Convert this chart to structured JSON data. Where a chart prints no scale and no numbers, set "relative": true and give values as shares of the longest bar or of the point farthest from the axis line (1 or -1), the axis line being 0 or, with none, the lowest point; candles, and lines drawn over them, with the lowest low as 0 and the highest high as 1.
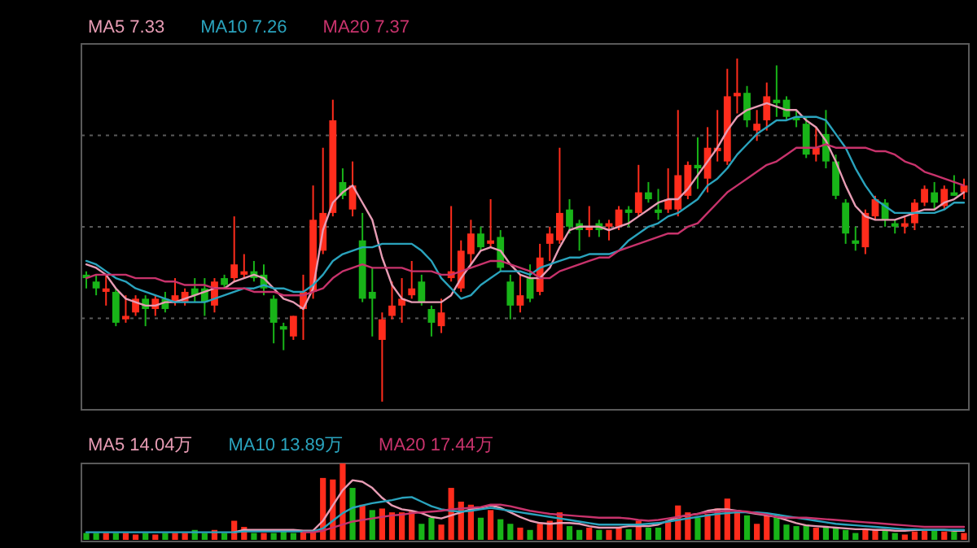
{
  "chart_data": [
    {
      "type": "candlestick",
      "relative": true,
      "grid": "y",
      "legend": "top left",
      "categories": [
        null,
        null,
        null,
        null,
        null,
        null,
        null,
        null,
        null,
        null,
        null,
        null,
        null,
        null,
        null,
        null,
        null,
        null,
        null,
        null,
        null,
        null,
        null,
        null,
        null,
        null,
        null,
        null,
        null,
        null,
        null,
        null,
        null,
        null,
        null,
        null,
        null,
        null,
        null,
        null,
        null,
        null,
        null,
        null,
        null,
        null,
        null,
        null,
        null,
        null,
        null,
        null,
        null,
        null,
        null,
        null,
        null,
        null,
        null,
        null,
        null,
        null,
        null,
        null,
        null,
        null,
        null,
        null,
        null,
        null,
        null,
        null,
        null,
        null,
        null,
        null,
        null,
        null,
        null,
        null,
        null,
        null,
        null,
        null,
        null,
        null,
        null,
        null,
        null,
        null
      ],
      "ohlc": [
        [
          0.37,
          0.38,
          0.33,
          0.36
        ],
        [
          0.35,
          0.37,
          0.31,
          0.33
        ],
        [
          0.32,
          0.37,
          0.28,
          0.33
        ],
        [
          0.32,
          0.33,
          0.22,
          0.23
        ],
        [
          0.24,
          0.31,
          0.23,
          0.25
        ],
        [
          0.26,
          0.31,
          0.25,
          0.3
        ],
        [
          0.3,
          0.31,
          0.22,
          0.27
        ],
        [
          0.27,
          0.31,
          0.25,
          0.3
        ],
        [
          0.3,
          0.32,
          0.26,
          0.27
        ],
        [
          0.29,
          0.36,
          0.28,
          0.31
        ],
        [
          0.29,
          0.33,
          0.28,
          0.32
        ],
        [
          0.33,
          0.36,
          0.29,
          0.31
        ],
        [
          0.33,
          0.36,
          0.25,
          0.29
        ],
        [
          0.28,
          0.36,
          0.26,
          0.35
        ],
        [
          0.36,
          0.37,
          0.33,
          0.34
        ],
        [
          0.36,
          0.54,
          0.35,
          0.4
        ],
        [
          0.37,
          0.43,
          0.36,
          0.38
        ],
        [
          0.38,
          0.41,
          0.35,
          0.36
        ],
        [
          0.37,
          0.4,
          0.31,
          0.33
        ],
        [
          0.3,
          0.31,
          0.17,
          0.23
        ],
        [
          0.22,
          0.23,
          0.15,
          0.21
        ],
        [
          0.19,
          0.25,
          0.18,
          0.25
        ],
        [
          0.27,
          0.37,
          0.18,
          0.32
        ],
        [
          0.32,
          0.63,
          0.3,
          0.53
        ],
        [
          0.44,
          0.74,
          0.43,
          0.55
        ],
        [
          0.55,
          0.88,
          0.54,
          0.82
        ],
        [
          0.64,
          0.68,
          0.59,
          0.6
        ],
        [
          0.56,
          0.7,
          0.54,
          0.63
        ],
        [
          0.47,
          0.55,
          0.29,
          0.3
        ],
        [
          0.32,
          0.39,
          0.19,
          0.3
        ],
        [
          0.18,
          0.26,
          0,
          0.24
        ],
        [
          0.25,
          0.35,
          0.24,
          0.28
        ],
        [
          0.28,
          0.36,
          0.23,
          0.3
        ],
        [
          0.31,
          0.41,
          0.3,
          0.33
        ],
        [
          0.35,
          0.37,
          0.28,
          0.29
        ],
        [
          0.27,
          0.28,
          0.19,
          0.23
        ],
        [
          0.22,
          0.3,
          0.2,
          0.26
        ],
        [
          0.36,
          0.57,
          0.35,
          0.38
        ],
        [
          0.33,
          0.47,
          0.32,
          0.44
        ],
        [
          0.43,
          0.53,
          0.4,
          0.49
        ],
        [
          0.49,
          0.51,
          0.44,
          0.45
        ],
        [
          0.46,
          0.59,
          0.45,
          0.47
        ],
        [
          0.48,
          0.5,
          0.38,
          0.39
        ],
        [
          0.35,
          0.37,
          0.24,
          0.28
        ],
        [
          0.28,
          0.37,
          0.26,
          0.31
        ],
        [
          0.36,
          0.4,
          0.29,
          0.3
        ],
        [
          0.32,
          0.46,
          0.31,
          0.42
        ],
        [
          0.46,
          0.51,
          0.41,
          0.49
        ],
        [
          0.47,
          0.74,
          0.46,
          0.55
        ],
        [
          0.56,
          0.59,
          0.49,
          0.51
        ],
        [
          0.52,
          0.53,
          0.44,
          0.5
        ],
        [
          0.5,
          0.57,
          0.48,
          0.51
        ],
        [
          0.52,
          0.53,
          0.48,
          0.5
        ],
        [
          0.51,
          0.53,
          0.47,
          0.52
        ],
        [
          0.51,
          0.57,
          0.5,
          0.56
        ],
        [
          0.56,
          0.57,
          0.51,
          0.55
        ],
        [
          0.55,
          0.69,
          0.54,
          0.61
        ],
        [
          0.61,
          0.64,
          0.58,
          0.59
        ],
        [
          0.56,
          0.62,
          0.53,
          0.55
        ],
        [
          0.56,
          0.68,
          0.55,
          0.59
        ],
        [
          0.56,
          0.85,
          0.54,
          0.66
        ],
        [
          0.6,
          0.7,
          0.59,
          0.69
        ],
        [
          0.69,
          0.77,
          0.62,
          0.68
        ],
        [
          0.65,
          0.8,
          0.61,
          0.74
        ],
        [
          0.73,
          0.85,
          0.7,
          0.74
        ],
        [
          0.7,
          0.97,
          0.69,
          0.89
        ],
        [
          0.89,
          1,
          0.84,
          0.9
        ],
        [
          0.9,
          0.92,
          0.8,
          0.82
        ],
        [
          0.79,
          0.85,
          0.76,
          0.81
        ],
        [
          0.82,
          0.93,
          0.79,
          0.89
        ],
        [
          0.88,
          0.98,
          0.83,
          0.87
        ],
        [
          0.88,
          0.89,
          0.82,
          0.83
        ],
        [
          0.83,
          0.85,
          0.8,
          0.82
        ],
        [
          0.81,
          0.83,
          0.71,
          0.72
        ],
        [
          0.72,
          0.8,
          0.7,
          0.74
        ],
        [
          0.78,
          0.85,
          0.68,
          0.7
        ],
        [
          0.7,
          0.72,
          0.59,
          0.6
        ],
        [
          0.58,
          0.59,
          0.46,
          0.49
        ],
        [
          0.47,
          0.51,
          0.44,
          0.46
        ],
        [
          0.45,
          0.56,
          0.43,
          0.55
        ],
        [
          0.54,
          0.6,
          0.53,
          0.59
        ],
        [
          0.58,
          0.59,
          0.51,
          0.53
        ],
        [
          0.52,
          0.53,
          0.49,
          0.51
        ],
        [
          0.51,
          0.54,
          0.49,
          0.52
        ],
        [
          0.52,
          0.59,
          0.5,
          0.58
        ],
        [
          0.58,
          0.63,
          0.57,
          0.62
        ],
        [
          0.61,
          0.64,
          0.56,
          0.58
        ],
        [
          0.57,
          0.63,
          0.56,
          0.62
        ],
        [
          0.61,
          0.66,
          0.6,
          0.6
        ],
        [
          0.61,
          0.65,
          0.59,
          0.63
        ]
      ],
      "colors": [
        "#18b418",
        "#18b418",
        "#ff2c1c",
        "#18b418",
        "#ff2c1c",
        "#ff2c1c",
        "#18b418",
        "#ff2c1c",
        "#18b418",
        "#ff2c1c",
        "#ff2c1c",
        "#18b418",
        "#18b418",
        "#ff2c1c",
        "#18b418",
        "#ff2c1c",
        "#ff2c1c",
        "#18b418",
        "#18b418",
        "#18b418",
        "#18b418",
        "#ff2c1c",
        "#ff2c1c",
        "#ff2c1c",
        "#ff2c1c",
        "#ff2c1c",
        "#18b418",
        "#ff2c1c",
        "#18b418",
        "#18b418",
        "#ff2c1c",
        "#ff2c1c",
        "#ff2c1c",
        "#ff2c1c",
        "#18b418",
        "#18b418",
        "#ff2c1c",
        "#ff2c1c",
        "#ff2c1c",
        "#ff2c1c",
        "#18b418",
        "#ff2c1c",
        "#18b418",
        "#18b418",
        "#ff2c1c",
        "#18b418",
        "#ff2c1c",
        "#ff2c1c",
        "#ff2c1c",
        "#18b418",
        "#18b418",
        "#ff2c1c",
        "#18b418",
        "#ff2c1c",
        "#ff2c1c",
        "#18b418",
        "#ff2c1c",
        "#18b418",
        "#18b418",
        "#ff2c1c",
        "#ff2c1c",
        "#ff2c1c",
        "#18b418",
        "#ff2c1c",
        "#ff2c1c",
        "#ff2c1c",
        "#ff2c1c",
        "#18b418",
        "#ff2c1c",
        "#ff2c1c",
        "#18b418",
        "#18b418",
        "#18b418",
        "#18b418",
        "#ff2c1c",
        "#18b418",
        "#18b418",
        "#18b418",
        "#18b418",
        "#ff2c1c",
        "#ff2c1c",
        "#18b418",
        "#18b418",
        "#ff2c1c",
        "#ff2c1c",
        "#ff2c1c",
        "#18b418",
        "#ff2c1c",
        "#18b418",
        "#ff2c1c"
      ],
      "series": [
        {
          "name": "MA5 7.33",
          "type": "line",
          "color": "#e79cb4",
          "values": [
            0.4,
            0.39,
            0.37,
            0.33,
            0.3,
            0.29,
            0.28,
            0.28,
            0.29,
            0.29,
            0.3,
            0.31,
            0.32,
            0.33,
            0.33,
            0.35,
            0.36,
            0.37,
            0.36,
            0.33,
            0.3,
            0.29,
            0.27,
            0.33,
            0.5,
            0.58,
            0.61,
            0.63,
            0.58,
            0.53,
            0.42,
            0.34,
            0.3,
            0.29,
            0.29,
            0.29,
            0.29,
            0.31,
            0.36,
            0.4,
            0.44,
            0.45,
            0.44,
            0.4,
            0.37,
            0.36,
            0.36,
            0.39,
            0.45,
            0.5,
            0.51,
            0.51,
            0.51,
            0.5,
            0.51,
            0.52,
            0.54,
            0.56,
            0.58,
            0.59,
            0.59,
            0.62,
            0.66,
            0.7,
            0.74,
            0.79,
            0.83,
            0.85,
            0.86,
            0.87,
            0.86,
            0.85,
            0.85,
            0.82,
            0.8,
            0.76,
            0.7,
            0.63,
            0.57,
            0.54,
            0.53,
            0.53,
            0.53,
            0.54,
            0.55,
            0.56,
            0.56,
            0.58,
            0.59,
            0.61
          ]
        },
        {
          "name": "MA10 7.26",
          "type": "line",
          "color": "#2aa3bd",
          "values": [
            0.41,
            0.4,
            0.38,
            0.36,
            0.35,
            0.33,
            0.32,
            0.31,
            0.3,
            0.29,
            0.29,
            0.29,
            0.29,
            0.3,
            0.31,
            0.32,
            0.33,
            0.33,
            0.34,
            0.33,
            0.33,
            0.32,
            0.32,
            0.34,
            0.37,
            0.41,
            0.43,
            0.44,
            0.45,
            0.45,
            0.46,
            0.46,
            0.46,
            0.46,
            0.44,
            0.41,
            0.36,
            0.33,
            0.3,
            0.31,
            0.34,
            0.36,
            0.38,
            0.38,
            0.38,
            0.37,
            0.39,
            0.4,
            0.41,
            0.42,
            0.42,
            0.43,
            0.43,
            0.43,
            0.44,
            0.47,
            0.49,
            0.51,
            0.52,
            0.54,
            0.55,
            0.57,
            0.59,
            0.63,
            0.65,
            0.68,
            0.72,
            0.75,
            0.78,
            0.8,
            0.82,
            0.82,
            0.83,
            0.83,
            0.83,
            0.82,
            0.78,
            0.74,
            0.68,
            0.63,
            0.59,
            0.57,
            0.55,
            0.55,
            0.55,
            0.55,
            0.55,
            0.56,
            0.58,
            0.58
          ]
        },
        {
          "name": "MA20 7.37",
          "type": "line",
          "color": "#c8336c",
          "values": [
            0.36,
            0.37,
            0.37,
            0.37,
            0.37,
            0.36,
            0.36,
            0.36,
            0.35,
            0.35,
            0.34,
            0.34,
            0.34,
            0.33,
            0.33,
            0.33,
            0.33,
            0.32,
            0.32,
            0.32,
            0.31,
            0.31,
            0.31,
            0.32,
            0.33,
            0.36,
            0.38,
            0.39,
            0.4,
            0.39,
            0.39,
            0.39,
            0.39,
            0.38,
            0.38,
            0.38,
            0.37,
            0.37,
            0.38,
            0.39,
            0.4,
            0.41,
            0.41,
            0.4,
            0.39,
            0.38,
            0.36,
            0.36,
            0.38,
            0.39,
            0.4,
            0.41,
            0.42,
            0.42,
            0.44,
            0.45,
            0.46,
            0.47,
            0.48,
            0.49,
            0.49,
            0.51,
            0.52,
            0.55,
            0.58,
            0.61,
            0.63,
            0.65,
            0.67,
            0.69,
            0.7,
            0.72,
            0.74,
            0.74,
            0.74,
            0.75,
            0.74,
            0.74,
            0.74,
            0.74,
            0.73,
            0.73,
            0.72,
            0.7,
            0.69,
            0.67,
            0.66,
            0.65,
            0.64,
            0.63
          ]
        }
      ]
    },
    {
      "type": "bar",
      "relative": true,
      "legend": "top left",
      "categories": [
        null,
        null,
        null,
        null,
        null,
        null,
        null,
        null,
        null,
        null,
        null,
        null,
        null,
        null,
        null,
        null,
        null,
        null,
        null,
        null,
        null,
        null,
        null,
        null,
        null,
        null,
        null,
        null,
        null,
        null,
        null,
        null,
        null,
        null,
        null,
        null,
        null,
        null,
        null,
        null,
        null,
        null,
        null,
        null,
        null,
        null,
        null,
        null,
        null,
        null,
        null,
        null,
        null,
        null,
        null,
        null,
        null,
        null,
        null,
        null,
        null,
        null,
        null,
        null,
        null,
        null,
        null,
        null,
        null,
        null,
        null,
        null,
        null,
        null,
        null,
        null,
        null,
        null,
        null,
        null,
        null,
        null,
        null,
        null,
        null,
        null,
        null,
        null,
        null,
        null
      ],
      "series": [
        {
          "type": "bar",
          "values": [
            0.09,
            0.09,
            0.09,
            0.09,
            0.09,
            0.07,
            0.09,
            0.07,
            0.09,
            0.09,
            0.09,
            0.13,
            0.09,
            0.13,
            0.09,
            0.25,
            0.17,
            0.09,
            0.09,
            0.09,
            0.11,
            0.09,
            0.11,
            0.11,
            0.81,
            0.79,
            1,
            0.68,
            0.46,
            0.39,
            0.41,
            0.36,
            0.36,
            0.37,
            0.21,
            0.29,
            0.2,
            0.68,
            0.5,
            0.46,
            0.29,
            0.39,
            0.27,
            0.21,
            0.16,
            0.13,
            0.21,
            0.25,
            0.36,
            0.18,
            0.13,
            0.16,
            0.13,
            0.13,
            0.16,
            0.14,
            0.25,
            0.16,
            0.16,
            0.25,
            0.45,
            0.36,
            0.29,
            0.34,
            0.41,
            0.54,
            0.39,
            0.32,
            0.21,
            0.34,
            0.34,
            0.2,
            0.18,
            0.2,
            0.16,
            0.18,
            0.16,
            0.13,
            0.09,
            0.14,
            0.14,
            0.13,
            0.09,
            0.07,
            0.11,
            0.13,
            0.13,
            0.11,
            0.11,
            0.09
          ],
          "colors": [
            "#18b418",
            "#18b418",
            "#ff2c1c",
            "#18b418",
            "#ff2c1c",
            "#ff2c1c",
            "#18b418",
            "#ff2c1c",
            "#18b418",
            "#ff2c1c",
            "#ff2c1c",
            "#18b418",
            "#18b418",
            "#ff2c1c",
            "#18b418",
            "#ff2c1c",
            "#ff2c1c",
            "#18b418",
            "#ff2c1c",
            "#18b418",
            "#18b418",
            "#18b418",
            "#ff2c1c",
            "#ff2c1c",
            "#ff2c1c",
            "#ff2c1c",
            "#ff2c1c",
            "#18b418",
            "#ff2c1c",
            "#18b418",
            "#ff2c1c",
            "#ff2c1c",
            "#ff2c1c",
            "#ff2c1c",
            "#18b418",
            "#18b418",
            "#ff2c1c",
            "#ff2c1c",
            "#ff2c1c",
            "#ff2c1c",
            "#18b418",
            "#ff2c1c",
            "#18b418",
            "#18b418",
            "#ff2c1c",
            "#18b418",
            "#ff2c1c",
            "#ff2c1c",
            "#ff2c1c",
            "#18b418",
            "#18b418",
            "#ff2c1c",
            "#18b418",
            "#ff2c1c",
            "#ff2c1c",
            "#18b418",
            "#ff2c1c",
            "#18b418",
            "#18b418",
            "#ff2c1c",
            "#ff2c1c",
            "#ff2c1c",
            "#18b418",
            "#ff2c1c",
            "#ff2c1c",
            "#ff2c1c",
            "#ff2c1c",
            "#18b418",
            "#ff2c1c",
            "#ff2c1c",
            "#18b418",
            "#18b418",
            "#18b418",
            "#18b418",
            "#ff2c1c",
            "#18b418",
            "#18b418",
            "#18b418",
            "#18b418",
            "#ff2c1c",
            "#ff2c1c",
            "#18b418",
            "#18b418",
            "#ff2c1c",
            "#ff2c1c",
            "#ff2c1c",
            "#18b418",
            "#ff2c1c",
            "#18b418",
            "#ff2c1c"
          ]
        },
        {
          "name": "MA5 14.04万",
          "type": "line",
          "color": "#e79cb4",
          "values": [
            null,
            null,
            null,
            null,
            null,
            null,
            null,
            null,
            null,
            null,
            null,
            null,
            null,
            null,
            null,
            0.1,
            0.13,
            0.13,
            0.13,
            0.13,
            0.13,
            0.13,
            0.12,
            0.12,
            0.25,
            0.45,
            0.65,
            0.78,
            0.76,
            0.68,
            0.55,
            0.45,
            0.4,
            0.38,
            0.35,
            0.3,
            0.28,
            0.32,
            0.36,
            0.4,
            0.42,
            0.45,
            0.42,
            0.36,
            0.3,
            0.25,
            0.22,
            0.21,
            0.22,
            0.22,
            0.21,
            0.18,
            0.16,
            0.16,
            0.16,
            0.18,
            0.18,
            0.18,
            0.2,
            0.25,
            0.3,
            0.32,
            0.34,
            0.38,
            0.4,
            0.4,
            0.38,
            0.36,
            0.34,
            0.32,
            0.3,
            0.26,
            0.22,
            0.19,
            0.18,
            0.17,
            0.16,
            0.15,
            0.14,
            0.14,
            0.13,
            0.13,
            0.12,
            0.12,
            0.13,
            0.13,
            0.13,
            0.13,
            0.12,
            0.12
          ]
        },
        {
          "name": "MA10 13.89万",
          "type": "line",
          "color": "#2aa3bd",
          "values": [
            0.1,
            0.1,
            0.1,
            0.1,
            0.1,
            0.1,
            0.1,
            0.1,
            0.1,
            0.1,
            0.1,
            0.1,
            0.1,
            0.1,
            0.1,
            0.1,
            0.11,
            0.11,
            0.11,
            0.11,
            0.11,
            0.11,
            0.11,
            0.11,
            0.15,
            0.25,
            0.35,
            0.42,
            0.45,
            0.48,
            0.5,
            0.52,
            0.55,
            0.56,
            0.5,
            0.44,
            0.4,
            0.38,
            0.37,
            0.38,
            0.4,
            0.42,
            0.4,
            0.38,
            0.36,
            0.34,
            0.32,
            0.3,
            0.28,
            0.26,
            0.24,
            0.22,
            0.2,
            0.2,
            0.2,
            0.2,
            0.2,
            0.21,
            0.22,
            0.24,
            0.26,
            0.28,
            0.3,
            0.32,
            0.34,
            0.35,
            0.36,
            0.36,
            0.36,
            0.35,
            0.33,
            0.31,
            0.29,
            0.27,
            0.25,
            0.23,
            0.21,
            0.2,
            0.19,
            0.18,
            0.17,
            0.16,
            0.15,
            0.14,
            0.14,
            0.13,
            0.13,
            0.13,
            0.13,
            0.13
          ]
        },
        {
          "name": "MA20 17.44万",
          "type": "line",
          "color": "#c8336c",
          "values": [
            null,
            null,
            null,
            null,
            null,
            null,
            null,
            null,
            null,
            null,
            null,
            null,
            null,
            null,
            null,
            null,
            null,
            null,
            null,
            null,
            null,
            null,
            0.1,
            0.1,
            0.12,
            0.16,
            0.2,
            0.24,
            0.26,
            0.28,
            0.3,
            0.32,
            0.33,
            0.35,
            0.36,
            0.37,
            0.38,
            0.4,
            0.41,
            0.42,
            0.43,
            0.46,
            0.46,
            0.44,
            0.41,
            0.38,
            0.36,
            0.34,
            0.33,
            0.32,
            0.31,
            0.3,
            0.29,
            0.29,
            0.29,
            0.28,
            0.26,
            0.25,
            0.26,
            0.28,
            0.3,
            0.32,
            0.34,
            0.36,
            0.37,
            0.38,
            0.38,
            0.37,
            0.35,
            0.33,
            0.3,
            0.29,
            0.29,
            0.29,
            0.28,
            0.27,
            0.26,
            0.25,
            0.24,
            0.23,
            0.22,
            0.21,
            0.2,
            0.19,
            0.18,
            0.17,
            0.17,
            0.17,
            0.17,
            0.17
          ]
        }
      ]
    }
  ]
}
